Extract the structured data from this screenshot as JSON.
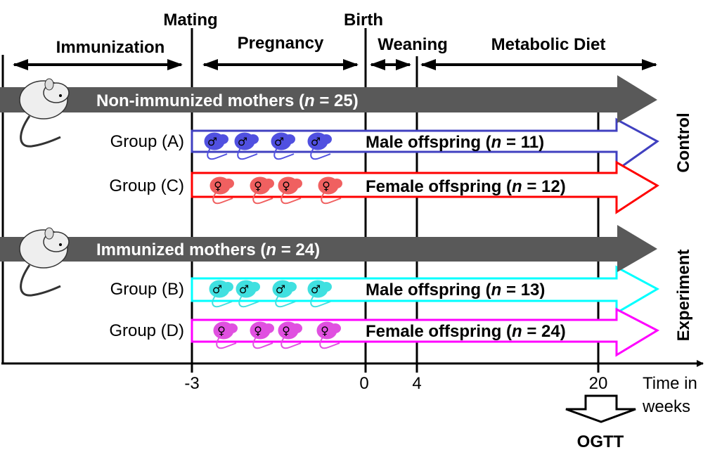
{
  "timeline": {
    "events": {
      "mating": "Mating",
      "birth": "Birth"
    },
    "phases": {
      "immunization": "Immunization",
      "pregnancy": "Pregnancy",
      "weaning": "Weaning",
      "metabolic_diet": "Metabolic Diet"
    },
    "ticks": [
      "-3",
      "0",
      "4",
      "20"
    ],
    "axis_label_line1": "Time in",
    "axis_label_line2": "weeks",
    "ogtt": "OGTT"
  },
  "mothers": [
    {
      "prefix": "Non-immunized mothers (",
      "n": "n",
      "suffix": " = 25)"
    },
    {
      "prefix": "Immunized mothers (",
      "n": "n",
      "suffix": " = 24)"
    }
  ],
  "groups": [
    {
      "label": "Group (A)",
      "prefix": "Male offspring (",
      "n": "n",
      "suffix": " = 11)",
      "color": "#4040c0",
      "sex": "male"
    },
    {
      "label": "Group (C)",
      "prefix": "Female offspring (",
      "n": "n",
      "suffix": " = 12)",
      "color": "#ff0000",
      "sex": "female"
    },
    {
      "label": "Group (B)",
      "prefix": "Male offspring (",
      "n": "n",
      "suffix": " = 13)",
      "color": "#00ffff",
      "sex": "male"
    },
    {
      "label": "Group (D)",
      "prefix": "Female offspring (",
      "n": "n",
      "suffix": " = 24)",
      "color": "#ff00ff",
      "sex": "female"
    }
  ],
  "side_labels": {
    "control": "Control",
    "experiment": "Experiment"
  },
  "colors": {
    "mother_arrow": "#595959",
    "male_mouse_ctrl": "#5050e0",
    "female_mouse_ctrl": "#f06060",
    "male_mouse_exp": "#40e0e0",
    "female_mouse_exp": "#e050e0"
  }
}
